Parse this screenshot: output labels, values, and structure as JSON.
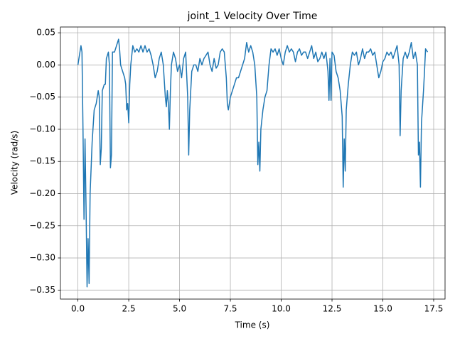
{
  "chart_data": {
    "type": "line",
    "title": "joint_1 Velocity Over Time",
    "xlabel": "Time (s)",
    "ylabel": "Velocity (rad/s)",
    "color": "#1f77b4",
    "grid": true,
    "x": [
      0.0,
      0.1,
      0.15,
      0.2,
      0.25,
      0.3,
      0.35,
      0.4,
      0.45,
      0.5,
      0.55,
      0.6,
      0.7,
      0.8,
      0.9,
      1.0,
      1.05,
      1.1,
      1.15,
      1.2,
      1.3,
      1.35,
      1.4,
      1.5,
      1.55,
      1.6,
      1.65,
      1.7,
      1.8,
      1.9,
      2.0,
      2.05,
      2.1,
      2.2,
      2.3,
      2.35,
      2.4,
      2.45,
      2.5,
      2.55,
      2.6,
      2.7,
      2.8,
      2.9,
      3.0,
      3.1,
      3.2,
      3.3,
      3.4,
      3.5,
      3.6,
      3.7,
      3.8,
      3.9,
      4.0,
      4.1,
      4.2,
      4.3,
      4.35,
      4.4,
      4.45,
      4.5,
      4.55,
      4.6,
      4.7,
      4.8,
      4.9,
      5.0,
      5.1,
      5.2,
      5.3,
      5.4,
      5.45,
      5.5,
      5.6,
      5.7,
      5.8,
      5.9,
      6.0,
      6.1,
      6.2,
      6.3,
      6.4,
      6.5,
      6.6,
      6.7,
      6.8,
      6.9,
      7.0,
      7.1,
      7.2,
      7.3,
      7.35,
      7.4,
      7.5,
      7.6,
      7.7,
      7.8,
      7.9,
      8.0,
      8.1,
      8.2,
      8.3,
      8.4,
      8.5,
      8.6,
      8.7,
      8.8,
      8.85,
      8.9,
      8.95,
      9.0,
      9.1,
      9.2,
      9.3,
      9.4,
      9.5,
      9.6,
      9.7,
      9.8,
      9.9,
      10.0,
      10.1,
      10.2,
      10.3,
      10.4,
      10.5,
      10.6,
      10.7,
      10.8,
      10.9,
      11.0,
      11.1,
      11.2,
      11.3,
      11.4,
      11.5,
      11.6,
      11.7,
      11.8,
      11.9,
      12.0,
      12.1,
      12.2,
      12.3,
      12.35,
      12.4,
      12.45,
      12.5,
      12.6,
      12.7,
      12.8,
      12.9,
      13.0,
      13.05,
      13.1,
      13.15,
      13.2,
      13.3,
      13.4,
      13.5,
      13.6,
      13.7,
      13.8,
      13.9,
      14.0,
      14.1,
      14.2,
      14.3,
      14.4,
      14.5,
      14.6,
      14.7,
      14.8,
      14.9,
      15.0,
      15.1,
      15.2,
      15.3,
      15.4,
      15.5,
      15.6,
      15.7,
      15.8,
      15.85,
      15.9,
      16.0,
      16.1,
      16.2,
      16.3,
      16.4,
      16.5,
      16.6,
      16.7,
      16.75,
      16.8,
      16.85,
      16.9,
      17.0,
      17.05,
      17.1,
      17.2
    ],
    "values": [
      0.0,
      0.02,
      0.03,
      0.02,
      -0.1,
      -0.24,
      -0.115,
      -0.22,
      -0.345,
      -0.27,
      -0.34,
      -0.2,
      -0.12,
      -0.07,
      -0.06,
      -0.04,
      -0.05,
      -0.155,
      -0.13,
      -0.04,
      -0.03,
      -0.03,
      0.01,
      0.02,
      0.0,
      -0.16,
      -0.14,
      0.02,
      0.02,
      0.03,
      0.04,
      0.025,
      0.0,
      -0.01,
      -0.02,
      -0.03,
      -0.07,
      -0.06,
      -0.09,
      -0.03,
      0.0,
      0.03,
      0.02,
      0.025,
      0.02,
      0.03,
      0.02,
      0.03,
      0.02,
      0.025,
      0.015,
      0.0,
      -0.02,
      -0.01,
      0.01,
      0.02,
      0.0,
      -0.05,
      -0.065,
      -0.04,
      -0.06,
      -0.1,
      -0.04,
      0.0,
      0.02,
      0.01,
      -0.01,
      0.0,
      -0.02,
      0.01,
      0.02,
      -0.05,
      -0.14,
      -0.07,
      -0.01,
      0.0,
      0.0,
      -0.01,
      0.01,
      0.0,
      0.01,
      0.015,
      0.02,
      0.0,
      -0.01,
      0.01,
      -0.005,
      0.0,
      0.02,
      0.025,
      0.02,
      -0.02,
      -0.06,
      -0.07,
      -0.05,
      -0.04,
      -0.03,
      -0.02,
      -0.02,
      -0.01,
      0.0,
      0.01,
      0.035,
      0.02,
      0.03,
      0.02,
      0.0,
      -0.05,
      -0.155,
      -0.12,
      -0.165,
      -0.1,
      -0.07,
      -0.05,
      -0.04,
      0.0,
      0.025,
      0.02,
      0.025,
      0.015,
      0.025,
      0.01,
      0.0,
      0.02,
      0.03,
      0.02,
      0.025,
      0.02,
      0.005,
      0.02,
      0.025,
      0.015,
      0.02,
      0.02,
      0.01,
      0.02,
      0.03,
      0.01,
      0.02,
      0.005,
      0.01,
      0.02,
      0.01,
      0.02,
      -0.01,
      -0.055,
      0.01,
      -0.055,
      0.02,
      0.015,
      -0.01,
      -0.02,
      -0.04,
      -0.08,
      -0.19,
      -0.115,
      -0.165,
      -0.07,
      -0.03,
      0.0,
      0.02,
      0.015,
      0.02,
      0.0,
      0.01,
      0.025,
      0.01,
      0.02,
      0.02,
      0.025,
      0.015,
      0.02,
      0.0,
      -0.02,
      -0.01,
      0.005,
      0.01,
      0.02,
      0.015,
      0.02,
      0.01,
      0.02,
      0.03,
      0.0,
      -0.11,
      -0.04,
      0.01,
      0.02,
      0.01,
      0.02,
      0.035,
      0.01,
      0.02,
      0.0,
      -0.14,
      -0.12,
      -0.19,
      -0.09,
      -0.04,
      -0.01,
      0.025,
      0.02
    ],
    "xlim": [
      -0.86,
      18.06
    ],
    "ylim": [
      -0.364,
      0.059
    ],
    "xticks": [
      {
        "value": 0,
        "label": "0.0"
      },
      2.5,
      {
        "value": 5,
        "label": "5.0"
      },
      7.5,
      {
        "value": 10,
        "label": "10.0"
      },
      12.5,
      {
        "value": 15,
        "label": "15.0"
      },
      17.5
    ],
    "yticks": [
      0.05,
      {
        "value": 0,
        "label": "0.00"
      },
      {
        "value": -0.05,
        "label": "−0.05"
      },
      {
        "value": -0.1,
        "label": "−0.10"
      },
      {
        "value": -0.15,
        "label": "−0.15"
      },
      {
        "value": -0.2,
        "label": "−0.20"
      },
      {
        "value": -0.25,
        "label": "−0.25"
      },
      {
        "value": -0.3,
        "label": "−0.30"
      },
      {
        "value": -0.35,
        "label": "−0.35"
      }
    ]
  }
}
